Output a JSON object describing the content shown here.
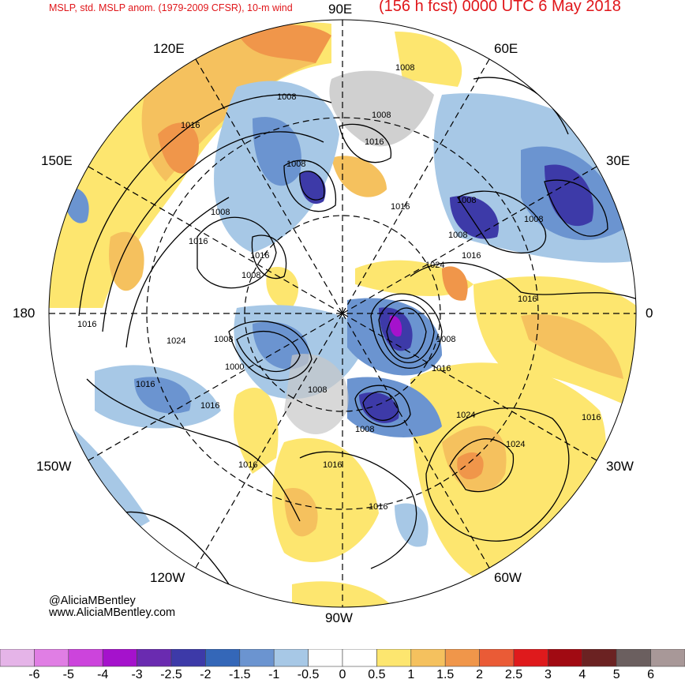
{
  "header": {
    "left": "MSLP, std. MSLP anom. (1979-2009 CFSR), 10-m wind",
    "right": "(156 h fcst) 0000 UTC 6 May 2018"
  },
  "longitude_labels": {
    "e90": "90E",
    "e60": "60E",
    "e30": "30E",
    "zero": "0",
    "w30": "30W",
    "w60": "60W",
    "w90": "90W",
    "w120": "120W",
    "w150": "150W",
    "d180": "180",
    "e150": "150E",
    "e120": "120E"
  },
  "isobar_labels": [
    "1008",
    "1008",
    "1008",
    "1016",
    "1016",
    "1008",
    "1016",
    "1008",
    "1008",
    "1008",
    "1024",
    "1016",
    "1016",
    "1016",
    "1008",
    "1008",
    "1024",
    "1016",
    "1008",
    "1000",
    "1008",
    "1016",
    "1016",
    "1008",
    "1024",
    "1024",
    "1016",
    "1016",
    "1016",
    "1016",
    "1016",
    "1016",
    "1008"
  ],
  "credit": {
    "handle": "@AliciaMBentley",
    "site": "www.AliciaMBentley.com"
  },
  "colorbar": {
    "colors": [
      "#e5b4e8",
      "#e07ee4",
      "#cc44dc",
      "#a512cc",
      "#6a2bb0",
      "#3d3aa8",
      "#3467b8",
      "#6b94d0",
      "#a7c8e6",
      "#ffffff",
      "#ffffff",
      "#fde66f",
      "#f5c15e",
      "#f0964a",
      "#ea5b36",
      "#df1a1c",
      "#a10a12",
      "#6b2222",
      "#6b5f5f",
      "#a89898"
    ],
    "labels": [
      "-6",
      "-5",
      "-4",
      "-3",
      "-2.5",
      "-2",
      "-1.5",
      "-1",
      "-0.5",
      "0",
      "0.5",
      "1",
      "1.5",
      "2",
      "2.5",
      "3",
      "4",
      "5",
      "6"
    ]
  }
}
